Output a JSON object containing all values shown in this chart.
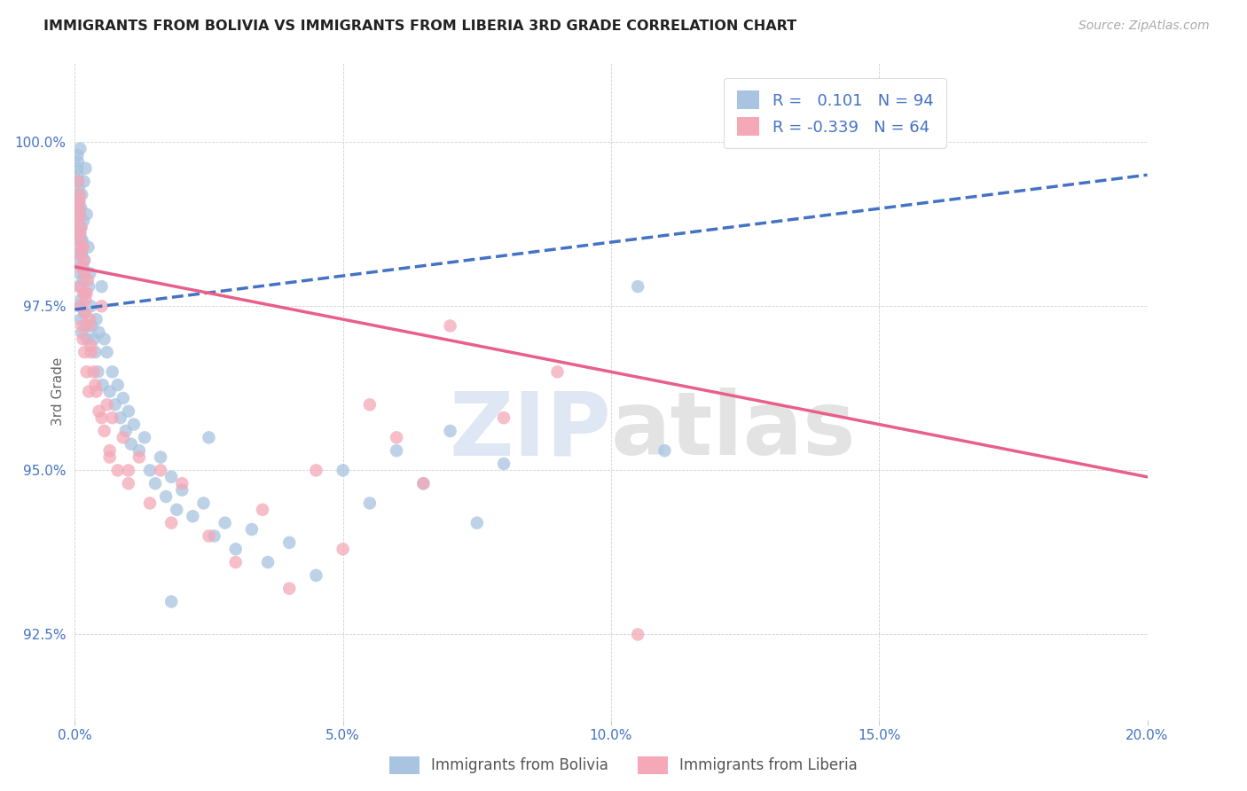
{
  "title": "IMMIGRANTS FROM BOLIVIA VS IMMIGRANTS FROM LIBERIA 3RD GRADE CORRELATION CHART",
  "source": "Source: ZipAtlas.com",
  "ylabel": "3rd Grade",
  "ylabel_tick_vals": [
    92.5,
    95.0,
    97.5,
    100.0
  ],
  "xlim": [
    0.0,
    20.0
  ],
  "ylim": [
    91.2,
    101.2
  ],
  "r_bolivia": 0.101,
  "n_bolivia": 94,
  "r_liberia": -0.339,
  "n_liberia": 64,
  "color_bolivia": "#a8c4e0",
  "color_liberia": "#f4a8b8",
  "color_bolivia_line": "#4472c4",
  "color_liberia_line": "#e8608a",
  "watermark_zip": "ZIP",
  "watermark_atlas": "atlas",
  "legend_labels": [
    "Immigrants from Bolivia",
    "Immigrants from Liberia"
  ],
  "bolivia_line_x0": 0.0,
  "bolivia_line_y0": 97.45,
  "bolivia_line_x1": 20.0,
  "bolivia_line_y1": 99.5,
  "liberia_line_x0": 0.0,
  "liberia_line_y0": 98.1,
  "liberia_line_x1": 20.0,
  "liberia_line_y1": 94.9,
  "bolivia_x": [
    0.05,
    0.05,
    0.06,
    0.06,
    0.07,
    0.07,
    0.08,
    0.08,
    0.09,
    0.09,
    0.1,
    0.1,
    0.1,
    0.11,
    0.11,
    0.12,
    0.12,
    0.13,
    0.13,
    0.14,
    0.15,
    0.15,
    0.16,
    0.17,
    0.18,
    0.18,
    0.19,
    0.2,
    0.2,
    0.22,
    0.23,
    0.25,
    0.26,
    0.28,
    0.3,
    0.32,
    0.35,
    0.38,
    0.4,
    0.43,
    0.45,
    0.5,
    0.52,
    0.55,
    0.6,
    0.65,
    0.7,
    0.75,
    0.8,
    0.85,
    0.9,
    0.95,
    1.0,
    1.05,
    1.1,
    1.2,
    1.3,
    1.4,
    1.5,
    1.6,
    1.7,
    1.8,
    1.9,
    2.0,
    2.2,
    2.4,
    2.6,
    2.8,
    3.0,
    3.3,
    3.6,
    4.0,
    4.5,
    5.0,
    5.5,
    6.0,
    6.5,
    7.0,
    7.5,
    8.0,
    0.05,
    0.05,
    0.06,
    0.07,
    0.08,
    0.09,
    0.1,
    0.11,
    0.12,
    0.13,
    1.8,
    2.5,
    10.5,
    11.0
  ],
  "bolivia_y": [
    98.2,
    99.5,
    99.7,
    98.8,
    99.3,
    98.6,
    98.9,
    99.1,
    97.8,
    98.4,
    98.0,
    97.5,
    98.7,
    99.0,
    97.3,
    98.3,
    97.6,
    99.2,
    97.1,
    98.5,
    98.1,
    97.9,
    98.8,
    99.4,
    97.4,
    98.2,
    97.7,
    99.6,
    97.2,
    98.9,
    97.0,
    98.4,
    97.8,
    98.0,
    97.5,
    97.2,
    97.0,
    96.8,
    97.3,
    96.5,
    97.1,
    97.8,
    96.3,
    97.0,
    96.8,
    96.2,
    96.5,
    96.0,
    96.3,
    95.8,
    96.1,
    95.6,
    95.9,
    95.4,
    95.7,
    95.3,
    95.5,
    95.0,
    94.8,
    95.2,
    94.6,
    94.9,
    94.4,
    94.7,
    94.3,
    94.5,
    94.0,
    94.2,
    93.8,
    94.1,
    93.6,
    93.9,
    93.4,
    95.0,
    94.5,
    95.3,
    94.8,
    95.6,
    94.2,
    95.1,
    99.8,
    99.6,
    99.4,
    99.2,
    99.0,
    98.6,
    99.9,
    98.7,
    98.5,
    98.3,
    93.0,
    95.5,
    97.8,
    95.3
  ],
  "liberia_x": [
    0.05,
    0.06,
    0.07,
    0.08,
    0.09,
    0.1,
    0.1,
    0.11,
    0.12,
    0.13,
    0.14,
    0.15,
    0.16,
    0.17,
    0.18,
    0.19,
    0.2,
    0.22,
    0.24,
    0.26,
    0.28,
    0.3,
    0.35,
    0.4,
    0.45,
    0.5,
    0.55,
    0.6,
    0.65,
    0.7,
    0.8,
    0.9,
    1.0,
    1.2,
    1.4,
    1.6,
    1.8,
    2.0,
    2.5,
    3.0,
    3.5,
    4.0,
    4.5,
    5.0,
    5.5,
    6.0,
    6.5,
    7.0,
    8.0,
    9.0,
    0.06,
    0.08,
    0.1,
    0.12,
    0.15,
    0.18,
    0.22,
    0.26,
    0.3,
    0.38,
    0.5,
    0.65,
    1.0,
    10.5
  ],
  "liberia_y": [
    98.8,
    99.0,
    98.5,
    98.3,
    99.2,
    97.8,
    98.6,
    97.5,
    98.1,
    97.2,
    98.4,
    97.0,
    97.7,
    98.2,
    96.8,
    97.4,
    97.6,
    96.5,
    97.9,
    96.2,
    97.3,
    96.8,
    96.5,
    96.2,
    95.9,
    97.5,
    95.6,
    96.0,
    95.3,
    95.8,
    95.0,
    95.5,
    94.8,
    95.2,
    94.5,
    95.0,
    94.2,
    94.8,
    94.0,
    93.6,
    94.4,
    93.2,
    95.0,
    93.8,
    96.0,
    95.5,
    94.8,
    97.2,
    95.8,
    96.5,
    99.4,
    99.1,
    98.9,
    98.7,
    98.4,
    98.0,
    97.7,
    97.2,
    96.9,
    96.3,
    95.8,
    95.2,
    95.0,
    92.5
  ]
}
